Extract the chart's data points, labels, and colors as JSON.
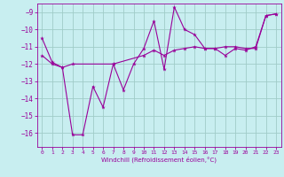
{
  "xlabel": "Windchill (Refroidissement éolien,°C)",
  "xlim": [
    -0.5,
    23.5
  ],
  "ylim": [
    -16.8,
    -8.5
  ],
  "yticks": [
    -16,
    -15,
    -14,
    -13,
    -12,
    -11,
    -10,
    -9
  ],
  "xticks": [
    0,
    1,
    2,
    3,
    4,
    5,
    6,
    7,
    8,
    9,
    10,
    11,
    12,
    13,
    14,
    15,
    16,
    17,
    18,
    19,
    20,
    21,
    22,
    23
  ],
  "bg_color": "#c8eef0",
  "line_color": "#990099",
  "grid_color": "#a0ccc8",
  "line1_x": [
    0,
    1,
    2,
    3,
    4,
    5,
    6,
    7,
    8,
    9,
    10,
    11,
    12,
    13,
    14,
    15,
    16,
    17,
    18,
    19,
    20,
    21,
    22,
    23
  ],
  "line1_y": [
    -10.5,
    -11.9,
    -12.2,
    -16.1,
    -16.1,
    -13.3,
    -14.5,
    -12.0,
    -13.5,
    -12.0,
    -11.1,
    -9.5,
    -12.3,
    -8.7,
    -10.0,
    -10.3,
    -11.1,
    -11.1,
    -11.5,
    -11.1,
    -11.2,
    -11.0,
    -9.2,
    -9.1
  ],
  "line2_x": [
    0,
    1,
    2,
    3,
    7,
    10,
    11,
    12,
    13,
    14,
    15,
    16,
    17,
    18,
    19,
    20,
    21,
    22,
    23
  ],
  "line2_y": [
    -11.5,
    -12.0,
    -12.2,
    -12.0,
    -12.0,
    -11.5,
    -11.2,
    -11.5,
    -11.2,
    -11.1,
    -11.0,
    -11.1,
    -11.1,
    -11.0,
    -11.0,
    -11.1,
    -11.1,
    -9.2,
    -9.1
  ]
}
